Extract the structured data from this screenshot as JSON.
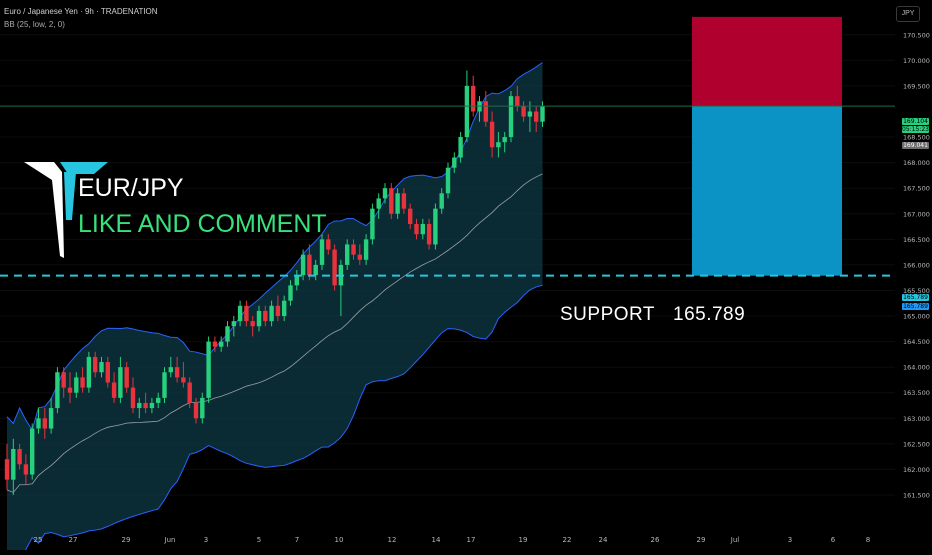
{
  "header": {
    "title": "Euro / Japanese Yen · 9h · TRADENATION",
    "indicator": "BB (25, low, 2, 0)",
    "currency": "JPY"
  },
  "branding": {
    "pair": "EUR/JPY",
    "tagline": "LIKE AND COMMENT"
  },
  "annotation": {
    "label": "SUPPORT",
    "value": "165.789"
  },
  "price_labels": {
    "last": "169.104",
    "countdown": "05:15:23",
    "prev": "169.041",
    "support_a": "165.789",
    "support_b": "165.789"
  },
  "colors": {
    "up": "#26d07c",
    "down": "#e8323c",
    "band": "#2962ff",
    "band_fill": "#0e3a46",
    "support": "#27c5e0",
    "stop_zone": "#b0002e",
    "target_zone": "#0a93c4"
  },
  "chart_data": {
    "type": "candlestick",
    "title": "Euro / Japanese Yen · 9h · TRADENATION",
    "ylabel": "JPY",
    "ylim": [
      161.4,
      171.0
    ],
    "y_ticks": [
      "161.500",
      "162.000",
      "162.500",
      "163.000",
      "163.500",
      "164.000",
      "164.500",
      "165.000",
      "165.500",
      "166.000",
      "166.500",
      "167.000",
      "167.500",
      "168.000",
      "168.500",
      "169.500",
      "170.000",
      "170.500"
    ],
    "x_ticks": [
      "25",
      "27",
      "29",
      "Jun",
      "3",
      "5",
      "7",
      "10",
      "12",
      "14",
      "17",
      "19",
      "22",
      "24",
      "26",
      "29",
      "Jul",
      "3",
      "6",
      "8"
    ],
    "support_level": 165.789,
    "last_price": 169.104,
    "position": {
      "entry": 169.104,
      "stop": 170.85,
      "target": 165.789
    },
    "candles": [
      [
        162.2,
        162.5,
        161.6,
        161.8
      ],
      [
        161.8,
        162.6,
        161.5,
        162.4
      ],
      [
        162.4,
        162.5,
        162.0,
        162.1
      ],
      [
        162.1,
        162.3,
        161.7,
        161.9
      ],
      [
        161.9,
        162.9,
        161.8,
        162.8
      ],
      [
        162.8,
        163.2,
        162.7,
        163.0
      ],
      [
        163.0,
        163.2,
        162.6,
        162.8
      ],
      [
        162.8,
        163.4,
        162.7,
        163.2
      ],
      [
        163.2,
        164.0,
        163.1,
        163.9
      ],
      [
        163.9,
        164.0,
        163.4,
        163.6
      ],
      [
        163.6,
        163.9,
        163.3,
        163.5
      ],
      [
        163.5,
        163.9,
        163.4,
        163.8
      ],
      [
        163.8,
        164.0,
        163.5,
        163.6
      ],
      [
        163.6,
        164.3,
        163.5,
        164.2
      ],
      [
        164.2,
        164.3,
        163.8,
        163.9
      ],
      [
        163.9,
        164.2,
        163.8,
        164.1
      ],
      [
        164.1,
        164.2,
        163.6,
        163.7
      ],
      [
        163.7,
        163.9,
        163.3,
        163.4
      ],
      [
        163.4,
        164.2,
        163.3,
        164.0
      ],
      [
        164.0,
        164.1,
        163.5,
        163.6
      ],
      [
        163.6,
        163.8,
        163.1,
        163.2
      ],
      [
        163.2,
        163.4,
        163.0,
        163.3
      ],
      [
        163.3,
        163.5,
        163.1,
        163.2
      ],
      [
        163.2,
        163.4,
        163.1,
        163.3
      ],
      [
        163.3,
        163.5,
        163.2,
        163.4
      ],
      [
        163.4,
        164.0,
        163.3,
        163.9
      ],
      [
        163.9,
        164.2,
        163.8,
        164.0
      ],
      [
        164.0,
        164.2,
        163.7,
        163.8
      ],
      [
        163.8,
        164.1,
        163.6,
        163.7
      ],
      [
        163.7,
        163.8,
        163.2,
        163.3
      ],
      [
        163.3,
        163.4,
        162.9,
        163.0
      ],
      [
        163.0,
        163.5,
        162.9,
        163.4
      ],
      [
        163.4,
        164.6,
        163.3,
        164.5
      ],
      [
        164.5,
        164.6,
        164.3,
        164.4
      ],
      [
        164.4,
        164.6,
        164.3,
        164.5
      ],
      [
        164.5,
        164.9,
        164.4,
        164.8
      ],
      [
        164.8,
        165.0,
        164.6,
        164.9
      ],
      [
        164.9,
        165.3,
        164.8,
        165.2
      ],
      [
        165.2,
        165.3,
        164.8,
        164.9
      ],
      [
        164.9,
        165.0,
        164.6,
        164.8
      ],
      [
        164.8,
        165.2,
        164.7,
        165.1
      ],
      [
        165.1,
        165.2,
        164.8,
        164.9
      ],
      [
        164.9,
        165.3,
        164.8,
        165.2
      ],
      [
        165.2,
        165.4,
        164.9,
        165.0
      ],
      [
        165.0,
        165.4,
        164.9,
        165.3
      ],
      [
        165.3,
        165.7,
        165.2,
        165.6
      ],
      [
        165.6,
        165.9,
        165.5,
        165.8
      ],
      [
        165.8,
        166.3,
        165.7,
        166.2
      ],
      [
        166.2,
        166.4,
        165.7,
        165.8
      ],
      [
        165.8,
        166.1,
        165.7,
        166.0
      ],
      [
        166.0,
        166.6,
        165.9,
        166.5
      ],
      [
        166.5,
        166.6,
        166.2,
        166.3
      ],
      [
        166.3,
        166.4,
        165.5,
        165.6
      ],
      [
        165.6,
        166.1,
        165.0,
        166.0
      ],
      [
        166.0,
        166.5,
        165.9,
        166.4
      ],
      [
        166.4,
        166.5,
        166.1,
        166.2
      ],
      [
        166.2,
        166.4,
        166.0,
        166.1
      ],
      [
        166.1,
        166.6,
        166.0,
        166.5
      ],
      [
        166.5,
        167.2,
        166.4,
        167.1
      ],
      [
        167.1,
        167.4,
        166.9,
        167.3
      ],
      [
        167.3,
        167.6,
        167.2,
        167.5
      ],
      [
        167.5,
        167.6,
        166.9,
        167.0
      ],
      [
        167.0,
        167.5,
        166.9,
        167.4
      ],
      [
        167.4,
        167.5,
        167.0,
        167.1
      ],
      [
        167.1,
        167.2,
        166.7,
        166.8
      ],
      [
        166.8,
        166.9,
        166.5,
        166.6
      ],
      [
        166.6,
        166.9,
        166.5,
        166.8
      ],
      [
        166.8,
        166.9,
        166.3,
        166.4
      ],
      [
        166.4,
        167.2,
        166.3,
        167.1
      ],
      [
        167.1,
        167.5,
        167.0,
        167.4
      ],
      [
        167.4,
        168.0,
        167.3,
        167.9
      ],
      [
        167.9,
        168.2,
        167.8,
        168.1
      ],
      [
        168.1,
        168.6,
        168.0,
        168.5
      ],
      [
        168.5,
        169.8,
        168.4,
        169.5
      ],
      [
        169.5,
        169.7,
        168.9,
        169.0
      ],
      [
        169.0,
        169.3,
        168.8,
        169.2
      ],
      [
        169.2,
        169.4,
        168.7,
        168.8
      ],
      [
        168.8,
        169.0,
        168.1,
        168.3
      ],
      [
        168.3,
        168.6,
        168.1,
        168.4
      ],
      [
        168.4,
        168.6,
        168.2,
        168.5
      ],
      [
        168.5,
        169.4,
        168.4,
        169.3
      ],
      [
        169.3,
        169.5,
        169.0,
        169.1
      ],
      [
        169.1,
        169.2,
        168.8,
        168.9
      ],
      [
        168.9,
        169.2,
        168.6,
        169.0
      ],
      [
        169.0,
        169.1,
        168.6,
        168.8
      ],
      [
        168.8,
        169.2,
        168.7,
        169.104
      ]
    ]
  }
}
